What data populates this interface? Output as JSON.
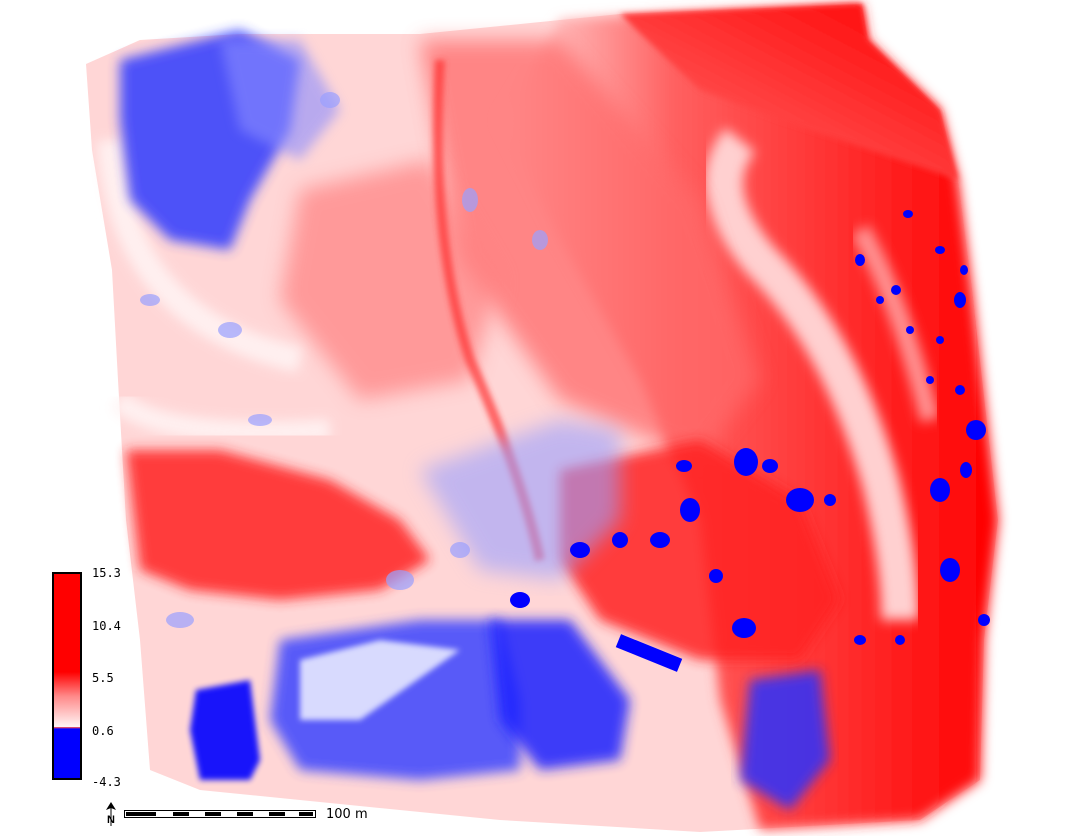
{
  "map": {
    "legend": {
      "ticks": [
        "15.3",
        "10.4",
        "5.5",
        "0.6",
        "-4.3"
      ],
      "colors": {
        "high": "#ff0000",
        "mid": "#ffffff",
        "low": "#0000ff"
      }
    },
    "scale": {
      "label": "100 m"
    },
    "north": {
      "icon": "north-arrow-icon",
      "letter": "N"
    }
  }
}
